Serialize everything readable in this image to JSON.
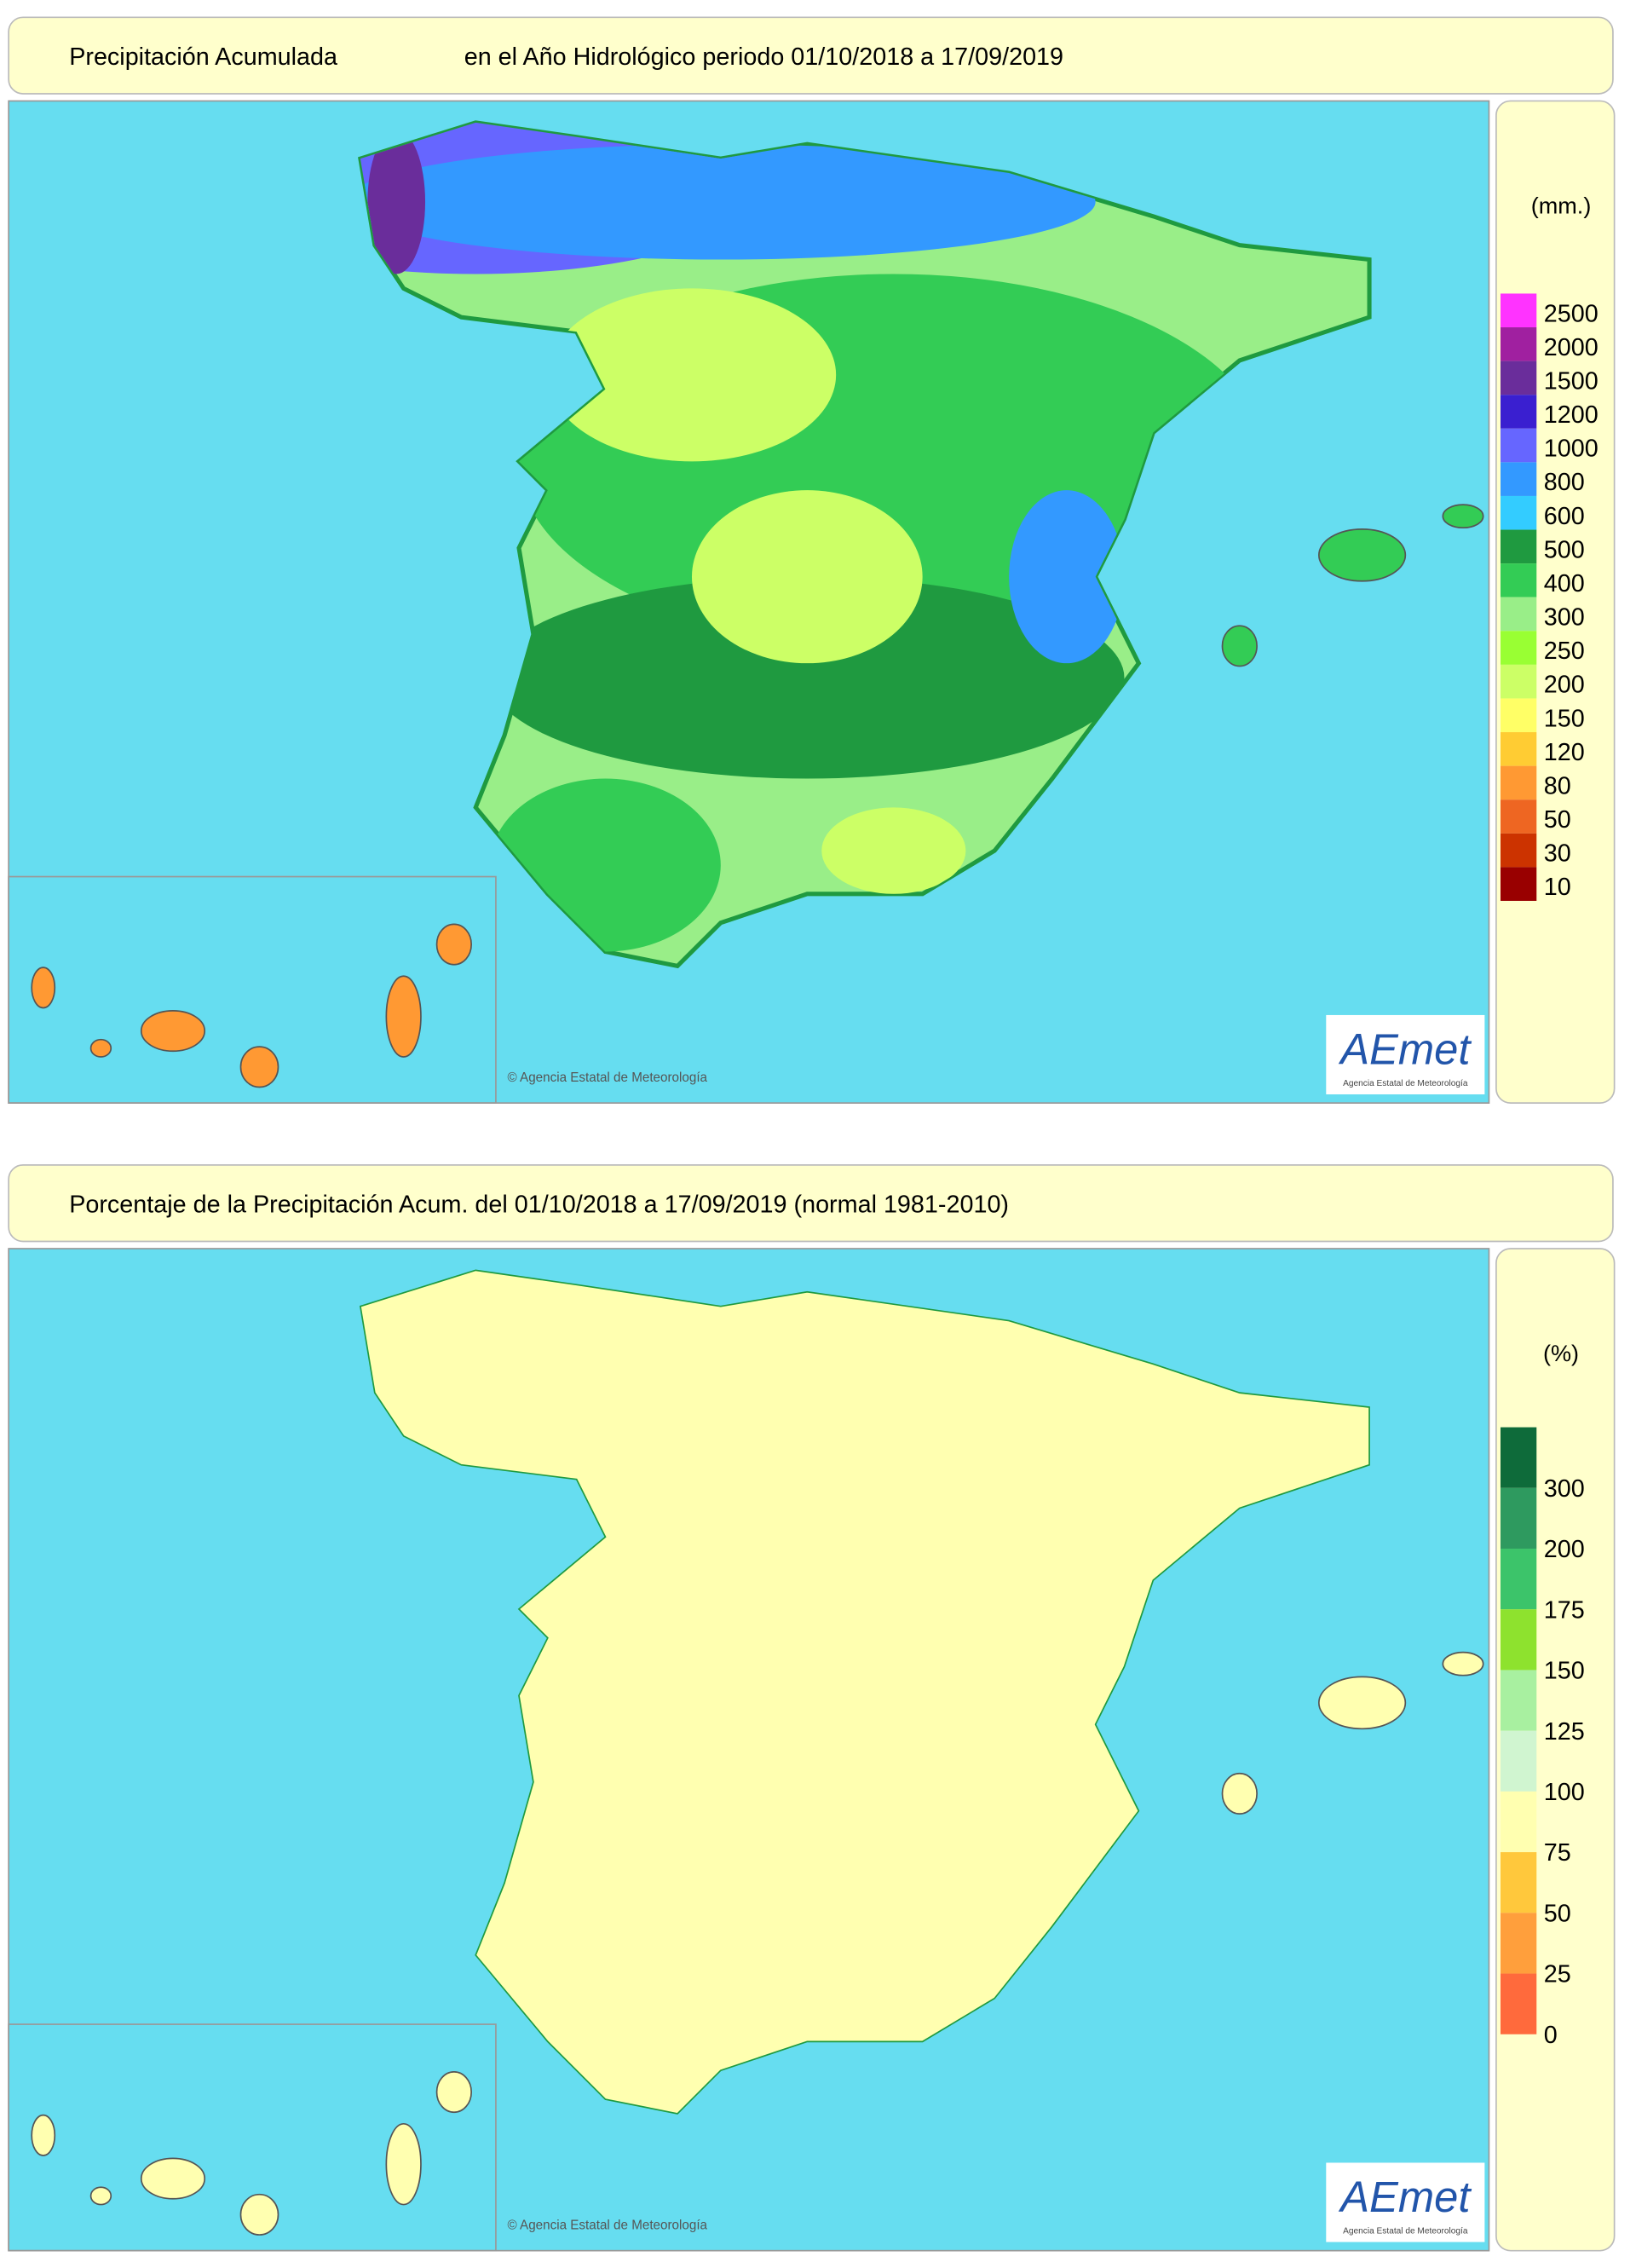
{
  "panels": [
    {
      "title_left": "Precipitación Acumulada",
      "title_right": "en el Año Hidrológico  periodo 01/10/2018 a 17/09/2019",
      "unit": "(mm.)",
      "legend": [
        {
          "value": 2500,
          "color": "#ff33ff"
        },
        {
          "value": 2000,
          "color": "#a020a0"
        },
        {
          "value": 1500,
          "color": "#6a2d9b"
        },
        {
          "value": 1200,
          "color": "#3a1fd0"
        },
        {
          "value": 1000,
          "color": "#6666ff"
        },
        {
          "value": 800,
          "color": "#3399ff"
        },
        {
          "value": 600,
          "color": "#33ccff"
        },
        {
          "value": 500,
          "color": "#1f9a40"
        },
        {
          "value": 400,
          "color": "#33cc55"
        },
        {
          "value": 300,
          "color": "#99ee88"
        },
        {
          "value": 250,
          "color": "#99ff33"
        },
        {
          "value": 200,
          "color": "#ccff66"
        },
        {
          "value": 150,
          "color": "#ffff66"
        },
        {
          "value": 120,
          "color": "#ffcc33"
        },
        {
          "value": 80,
          "color": "#ff9933"
        },
        {
          "value": 50,
          "color": "#ee6622"
        },
        {
          "value": 30,
          "color": "#cc3300"
        },
        {
          "value": 10,
          "color": "#990000"
        }
      ],
      "credit": "© Agencia Estatal de Meteorología",
      "logo": "AEmet",
      "logo_subtitle": "Agencia Estatal de Meteorología"
    },
    {
      "title_left": "Porcentaje de la Precipitación Acum. del 01/10/2018 a  17/09/2019  (normal 1981-2010)",
      "unit": "(%)",
      "legend": [
        {
          "value": 300,
          "color": "#0e6b3a"
        },
        {
          "value": 200,
          "color": "#2e9a5f"
        },
        {
          "value": 175,
          "color": "#3cc46a"
        },
        {
          "value": 150,
          "color": "#8ee22e"
        },
        {
          "value": 125,
          "color": "#a8f0a0"
        },
        {
          "value": 100,
          "color": "#d0f5d0"
        },
        {
          "value": 75,
          "color": "#ffffb0"
        },
        {
          "value": 50,
          "color": "#ffc83c"
        },
        {
          "value": 25,
          "color": "#ff9f3c"
        },
        {
          "value": 0,
          "color": "#ff6a3c"
        }
      ],
      "credit": "© Agencia Estatal de Meteorología",
      "logo": "AEmet",
      "logo_subtitle": "Agencia Estatal de Meteorología"
    }
  ]
}
